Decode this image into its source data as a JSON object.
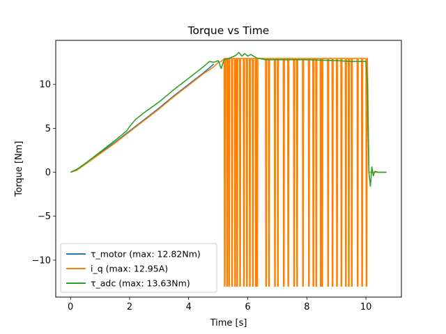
{
  "chart_data": {
    "type": "line",
    "title": "Torque vs Time",
    "xlabel": "Time [s]",
    "ylabel": "Torque [Nm]",
    "xlim": [
      -0.5,
      11.2
    ],
    "ylim": [
      -14.2,
      15.0
    ],
    "xticks": [
      0,
      2,
      4,
      6,
      8,
      10
    ],
    "yticks": [
      -10,
      -5,
      0,
      5,
      10
    ],
    "x_tick_labels": [
      "0",
      "2",
      "4",
      "6",
      "8",
      "10"
    ],
    "y_tick_labels": [
      "−10",
      "−5",
      "0",
      "5",
      "10"
    ],
    "grid": false,
    "legend_position": "lower-left",
    "series": [
      {
        "name": "τ_motor (max: 12.82Nm)",
        "color": "#1f77b4",
        "x": [
          0.0,
          0.2,
          0.5,
          1.0,
          1.5,
          2.0,
          2.5,
          3.0,
          3.5,
          4.0,
          4.5,
          4.85
        ],
        "y": [
          0.0,
          0.3,
          1.0,
          2.2,
          3.4,
          4.7,
          6.0,
          7.3,
          8.7,
          10.0,
          11.3,
          12.3
        ]
      },
      {
        "name": "i_q (max: 12.95A)",
        "color": "#ff7f00",
        "x": [
          0.0,
          0.2,
          0.5,
          1.0,
          1.5,
          2.0,
          2.5,
          3.0,
          3.5,
          4.0,
          4.5,
          4.85,
          5.0,
          5.1,
          5.2,
          10.05,
          10.1,
          10.6
        ],
        "y": [
          0.0,
          0.2,
          0.9,
          2.1,
          3.3,
          4.6,
          5.9,
          7.2,
          8.6,
          9.9,
          11.2,
          12.0,
          12.5,
          12.6,
          12.9,
          12.9,
          0.0,
          0.0
        ],
        "oscillation": {
          "x_start": 5.2,
          "x_end": 10.05,
          "high": 12.95,
          "low": -12.95,
          "drop_times": [
            5.2,
            5.28,
            5.35,
            5.45,
            5.55,
            5.62,
            5.72,
            5.85,
            5.95,
            6.05,
            6.15,
            6.25,
            6.3,
            6.6,
            6.7,
            6.9,
            7.0,
            7.2,
            7.35,
            7.55,
            7.65,
            7.85,
            8.05,
            8.2,
            8.3,
            8.45,
            8.5,
            8.7,
            8.85,
            9.0,
            9.15,
            9.3,
            9.4,
            9.5,
            9.7,
            9.85,
            10.0
          ]
        }
      },
      {
        "name": "τ_adc (max: 13.63Nm)",
        "color": "#2ca02c",
        "x": [
          0.0,
          0.2,
          0.5,
          1.0,
          1.5,
          1.9,
          2.0,
          2.2,
          2.5,
          3.0,
          3.5,
          4.0,
          4.5,
          4.7,
          4.85,
          5.0,
          5.1,
          5.2,
          5.4,
          5.6,
          5.7,
          5.8,
          5.9,
          6.0,
          6.1,
          6.3,
          6.6,
          7.0,
          8.0,
          9.0,
          9.5,
          10.0,
          10.05,
          10.1,
          10.15,
          10.2,
          10.25,
          10.3,
          10.4,
          10.7
        ],
        "y": [
          0.0,
          0.3,
          1.0,
          2.3,
          3.6,
          4.7,
          5.2,
          6.0,
          6.8,
          8.0,
          9.4,
          10.7,
          12.0,
          12.6,
          12.5,
          12.7,
          11.8,
          12.8,
          13.0,
          13.3,
          13.63,
          13.2,
          13.5,
          13.2,
          13.4,
          13.0,
          12.8,
          12.8,
          12.8,
          12.7,
          12.6,
          12.6,
          10.0,
          0.0,
          -1.6,
          0.6,
          -0.4,
          0.1,
          0.0,
          0.0
        ]
      }
    ]
  }
}
